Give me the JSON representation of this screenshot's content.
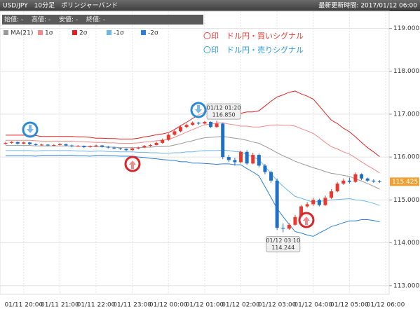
{
  "header": {
    "title": "USD/JPY　10分足　ボリンジャーバンド",
    "updated": "最新更新時間: 2017/01/12 06:00"
  },
  "info": [
    "始値: -",
    "高値: -",
    "安値: -",
    "終値: -"
  ],
  "signals": [
    "〇印　ドル円・買いシグナル",
    "〇印　ドル円・売りシグナル"
  ],
  "chart_data": {
    "type": "candlestick",
    "categories": [
      null,
      null,
      null,
      "01/11 20:00",
      null,
      null,
      null,
      null,
      null,
      "01/11 21:00",
      null,
      null,
      null,
      null,
      null,
      "01/11 22:00",
      null,
      null,
      null,
      null,
      null,
      "01/11 23:00",
      null,
      null,
      null,
      null,
      null,
      "01/12 00:00",
      null,
      null,
      null,
      null,
      null,
      "01/12 01:00",
      null,
      null,
      null,
      null,
      null,
      "01/12 02:00",
      null,
      null,
      null,
      null,
      null,
      "01/12 03:00",
      null,
      null,
      null,
      null,
      null,
      "01/12 04:00",
      null,
      null,
      null,
      null,
      null,
      "01/12 05:00",
      null,
      null,
      null,
      null,
      null,
      "01/12 06:00"
    ],
    "ohlc": {
      "up_color": "#e8392f",
      "down_color": "#1f6fc5",
      "open": [
        116.31,
        116.33,
        116.35,
        116.31,
        116.34,
        116.3,
        116.28,
        116.29,
        116.27,
        116.28,
        116.3,
        116.27,
        116.25,
        116.26,
        116.23,
        116.25,
        116.27,
        116.24,
        116.22,
        116.2,
        116.19,
        116.16,
        116.2,
        116.22,
        116.26,
        116.28,
        116.33,
        116.4,
        116.52,
        116.6,
        116.7,
        116.75,
        116.8,
        116.78,
        116.82,
        116.7,
        116.78,
        116.0,
        115.93,
        115.88,
        116.12,
        115.85,
        116.05,
        115.8,
        115.65,
        115.45,
        114.35,
        114.33,
        114.42,
        114.6,
        114.85,
        114.9,
        115.0,
        114.88,
        115.05,
        115.2,
        115.38,
        115.45,
        115.42,
        115.6,
        115.5,
        115.45,
        115.43,
        null
      ],
      "high": [
        116.36,
        116.37,
        116.36,
        116.36,
        116.35,
        116.32,
        116.31,
        116.3,
        116.3,
        116.33,
        116.31,
        116.29,
        116.28,
        116.27,
        116.27,
        116.29,
        116.28,
        116.26,
        116.24,
        116.22,
        116.2,
        116.22,
        116.24,
        116.28,
        116.3,
        116.36,
        116.43,
        116.55,
        116.64,
        116.73,
        116.78,
        116.83,
        116.82,
        116.84,
        116.83,
        116.85,
        116.8,
        116.05,
        115.98,
        116.15,
        116.16,
        116.1,
        116.08,
        115.84,
        115.68,
        115.5,
        114.45,
        114.46,
        114.65,
        114.88,
        114.95,
        115.05,
        115.03,
        115.1,
        115.25,
        115.42,
        115.5,
        115.52,
        115.64,
        115.62,
        115.52,
        115.48,
        115.46,
        null
      ],
      "low": [
        116.29,
        116.31,
        116.29,
        116.3,
        116.28,
        116.26,
        116.26,
        116.25,
        116.25,
        116.27,
        116.25,
        116.23,
        116.24,
        116.21,
        116.22,
        116.24,
        116.22,
        116.2,
        116.18,
        116.17,
        116.14,
        116.15,
        116.18,
        116.21,
        116.24,
        116.27,
        116.31,
        116.38,
        116.5,
        116.58,
        116.67,
        116.73,
        116.75,
        116.76,
        116.68,
        116.68,
        115.95,
        115.88,
        115.8,
        115.85,
        115.82,
        115.83,
        115.76,
        115.6,
        115.4,
        114.3,
        114.244,
        114.3,
        114.4,
        114.58,
        114.82,
        114.86,
        114.85,
        114.86,
        115.02,
        115.18,
        115.35,
        115.38,
        115.4,
        115.46,
        115.42,
        115.4,
        115.4,
        null
      ],
      "close": [
        116.33,
        116.35,
        116.31,
        116.34,
        116.3,
        116.28,
        116.29,
        116.27,
        116.28,
        116.3,
        116.27,
        116.25,
        116.26,
        116.23,
        116.25,
        116.27,
        116.24,
        116.22,
        116.2,
        116.19,
        116.16,
        116.2,
        116.22,
        116.26,
        116.28,
        116.33,
        116.4,
        116.52,
        116.6,
        116.7,
        116.75,
        116.8,
        116.78,
        116.82,
        116.7,
        116.78,
        116.0,
        115.93,
        115.88,
        116.12,
        115.85,
        116.05,
        115.8,
        115.65,
        115.45,
        114.35,
        114.33,
        114.42,
        114.6,
        114.85,
        114.9,
        115.0,
        114.88,
        115.05,
        115.2,
        115.38,
        115.45,
        115.42,
        115.6,
        115.5,
        115.45,
        115.43,
        115.425,
        null
      ]
    },
    "series": [
      {
        "name": "MA(21)",
        "color": "#999999",
        "values": [
          116.27,
          116.27,
          116.27,
          116.27,
          116.27,
          116.26,
          116.26,
          116.26,
          116.26,
          116.26,
          116.26,
          116.26,
          116.25,
          116.25,
          116.24,
          116.24,
          116.24,
          116.23,
          116.23,
          116.22,
          116.22,
          116.22,
          116.22,
          116.23,
          116.23,
          116.24,
          116.24,
          116.25,
          116.28,
          116.31,
          116.35,
          116.38,
          116.42,
          116.45,
          116.46,
          116.47,
          116.48,
          116.46,
          116.44,
          116.42,
          116.39,
          116.35,
          116.32,
          116.25,
          116.18,
          116.1,
          116.03,
          115.97,
          115.9,
          115.85,
          115.8,
          115.75,
          115.71,
          115.66,
          115.62,
          115.6,
          115.57,
          115.55,
          115.49,
          115.44,
          115.38,
          115.32,
          115.25,
          null
        ]
      },
      {
        "name": "1σ",
        "color": "#f08a8a",
        "values": [
          116.39,
          116.39,
          116.39,
          116.39,
          116.39,
          116.38,
          116.37,
          116.37,
          116.37,
          116.37,
          116.37,
          116.37,
          116.36,
          116.36,
          116.35,
          116.34,
          116.34,
          116.33,
          116.33,
          116.32,
          116.32,
          116.32,
          116.33,
          116.35,
          116.36,
          116.38,
          116.39,
          116.41,
          116.46,
          116.52,
          116.58,
          116.64,
          116.7,
          116.75,
          116.77,
          116.79,
          116.8,
          116.77,
          116.75,
          116.72,
          116.72,
          116.7,
          116.7,
          116.72,
          116.74,
          116.75,
          116.74,
          116.74,
          116.72,
          116.66,
          116.61,
          116.55,
          116.45,
          116.34,
          116.24,
          116.19,
          116.12,
          116.07,
          115.98,
          115.89,
          115.8,
          115.72,
          115.63,
          null
        ]
      },
      {
        "name": "2σ",
        "color": "#e02020",
        "values": [
          116.51,
          116.51,
          116.51,
          116.51,
          116.51,
          116.5,
          116.48,
          116.48,
          116.48,
          116.48,
          116.48,
          116.48,
          116.47,
          116.47,
          116.46,
          116.44,
          116.44,
          116.43,
          116.43,
          116.42,
          116.42,
          116.42,
          116.44,
          116.47,
          116.49,
          116.52,
          116.54,
          116.57,
          116.64,
          116.73,
          116.81,
          116.9,
          116.98,
          117.05,
          117.08,
          117.11,
          117.12,
          117.08,
          117.06,
          117.02,
          117.05,
          117.05,
          117.08,
          117.19,
          117.3,
          117.4,
          117.45,
          117.51,
          117.54,
          117.47,
          117.42,
          117.35,
          117.19,
          117.02,
          116.86,
          116.78,
          116.67,
          116.59,
          116.47,
          116.34,
          116.22,
          116.12,
          116.01,
          null
        ]
      },
      {
        "name": "-1σ",
        "color": "#6cb6ea",
        "values": [
          116.15,
          116.15,
          116.15,
          116.15,
          116.15,
          116.14,
          116.15,
          116.15,
          116.15,
          116.15,
          116.15,
          116.15,
          116.14,
          116.14,
          116.13,
          116.14,
          116.14,
          116.13,
          116.13,
          116.12,
          116.12,
          116.12,
          116.11,
          116.11,
          116.1,
          116.1,
          116.09,
          116.09,
          116.1,
          116.1,
          116.12,
          116.12,
          116.14,
          116.15,
          116.15,
          116.15,
          116.16,
          116.15,
          116.13,
          116.12,
          116.06,
          116.0,
          115.94,
          115.78,
          115.62,
          115.45,
          115.32,
          115.2,
          115.08,
          115.04,
          114.99,
          114.95,
          114.97,
          114.98,
          115.0,
          115.01,
          115.02,
          115.03,
          115.0,
          114.99,
          114.96,
          114.92,
          114.87,
          null
        ]
      },
      {
        "name": "-2σ",
        "color": "#2a7fd4",
        "values": [
          116.03,
          116.03,
          116.03,
          116.03,
          116.03,
          116.02,
          116.04,
          116.04,
          116.04,
          116.04,
          116.04,
          116.04,
          116.03,
          116.03,
          116.02,
          116.04,
          116.04,
          116.03,
          116.03,
          116.02,
          116.02,
          116.02,
          116.0,
          115.99,
          115.97,
          115.96,
          115.94,
          115.93,
          115.92,
          115.89,
          115.89,
          115.86,
          115.86,
          115.85,
          115.84,
          115.83,
          115.84,
          115.84,
          115.82,
          115.82,
          115.73,
          115.65,
          115.56,
          115.31,
          115.06,
          114.8,
          114.61,
          114.43,
          114.26,
          114.23,
          114.18,
          114.15,
          114.23,
          114.3,
          114.38,
          114.42,
          114.47,
          114.51,
          114.51,
          114.54,
          114.54,
          114.52,
          114.49,
          null
        ]
      }
    ],
    "ylim": [
      112.8,
      119.4
    ],
    "yticks": [
      {
        "value": 113,
        "label": "113.000"
      },
      {
        "value": 114,
        "label": "114.000"
      },
      {
        "value": 115,
        "label": "115.000"
      },
      {
        "value": 116,
        "label": "116.000"
      },
      {
        "value": 117,
        "label": "117.000"
      },
      {
        "value": 118,
        "label": "118.000"
      },
      {
        "value": 119,
        "label": "119.000"
      }
    ],
    "grid": true,
    "annotations": [
      {
        "time": "01/12 01:20",
        "value": 116.85,
        "label": "116.850"
      },
      {
        "time": "01/12 03:10",
        "value": 114.244,
        "label": "114.244"
      }
    ],
    "last_label": "115.425"
  }
}
